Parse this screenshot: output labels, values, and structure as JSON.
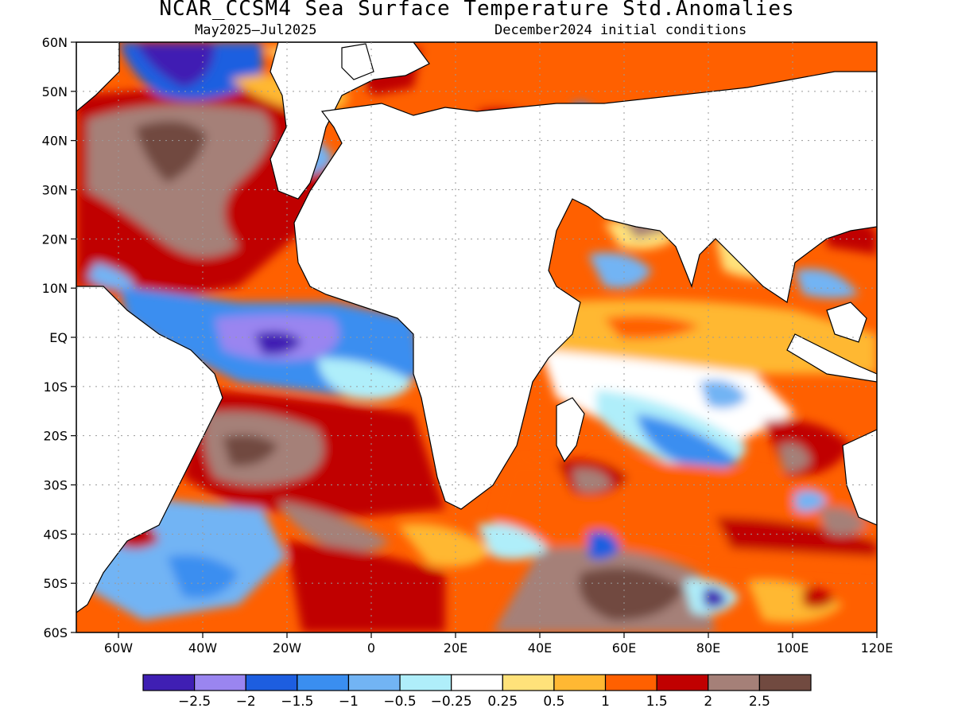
{
  "title": "NCAR_CCSM4 Sea Surface Temperature Std.Anomalies",
  "subtitle_left": "May2025–Jul2025",
  "subtitle_right": "December2024 initial conditions",
  "map": {
    "lon_range": [
      -70,
      120
    ],
    "lat_range": [
      -60,
      60
    ],
    "lat_labels": [
      "60N",
      "50N",
      "40N",
      "30N",
      "20N",
      "10N",
      "EQ",
      "10S",
      "20S",
      "30S",
      "40S",
      "50S",
      "60S"
    ],
    "lon_labels": [
      "60W",
      "40W",
      "20W",
      "0",
      "20E",
      "40E",
      "60E",
      "80E",
      "100E",
      "120E"
    ],
    "grid": "dotted"
  },
  "colorbar": {
    "colors": [
      "#3f1fb3",
      "#9a85f0",
      "#1d5ee0",
      "#3a8ef0",
      "#72b4f4",
      "#afeefa",
      "#ffffff",
      "#ffe27a",
      "#ffb833",
      "#ff6000",
      "#c00000",
      "#a58078",
      "#714a40"
    ],
    "labels": [
      "−2.5",
      "−2",
      "−1.5",
      "−1",
      "−0.5",
      "−0.25",
      "0.25",
      "0.5",
      "1",
      "1.5",
      "2",
      "2.5"
    ]
  }
}
